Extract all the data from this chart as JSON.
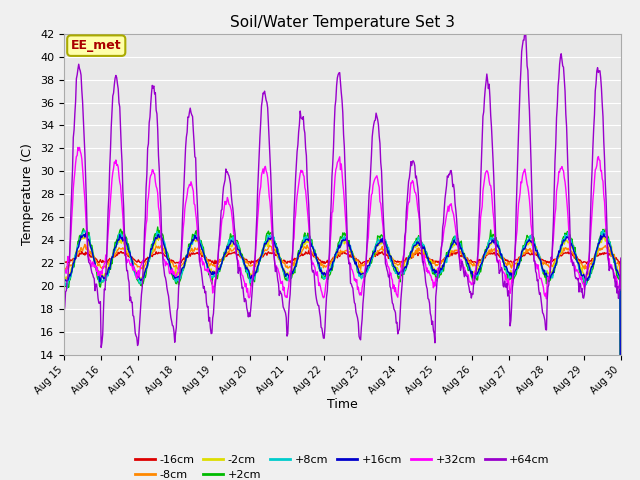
{
  "title": "Soil/Water Temperature Set 3",
  "xlabel": "Time",
  "ylabel": "Temperature (C)",
  "ylim": [
    14,
    42
  ],
  "yticks": [
    14,
    16,
    18,
    20,
    22,
    24,
    26,
    28,
    30,
    32,
    34,
    36,
    38,
    40,
    42
  ],
  "xtick_labels": [
    "Aug 15",
    "Aug 16",
    "Aug 17",
    "Aug 18",
    "Aug 19",
    "Aug 20",
    "Aug 21",
    "Aug 22",
    "Aug 23",
    "Aug 24",
    "Aug 25",
    "Aug 26",
    "Aug 27",
    "Aug 28",
    "Aug 29",
    "Aug 30"
  ],
  "series": [
    {
      "label": "-16cm",
      "color": "#dd0000"
    },
    {
      "label": "-8cm",
      "color": "#ff8800"
    },
    {
      "label": "-2cm",
      "color": "#dddd00"
    },
    {
      "label": "+2cm",
      "color": "#00bb00"
    },
    {
      "label": "+8cm",
      "color": "#00cccc"
    },
    {
      "label": "+16cm",
      "color": "#0000cc"
    },
    {
      "label": "+32cm",
      "color": "#ff00ff"
    },
    {
      "label": "+64cm",
      "color": "#9900cc"
    }
  ],
  "annotation_text": "EE_met",
  "fig_bg": "#f0f0f0",
  "plot_bg": "#e8e8e8",
  "grid_color": "#ffffff",
  "n_days": 15,
  "hours_per_day": 48
}
